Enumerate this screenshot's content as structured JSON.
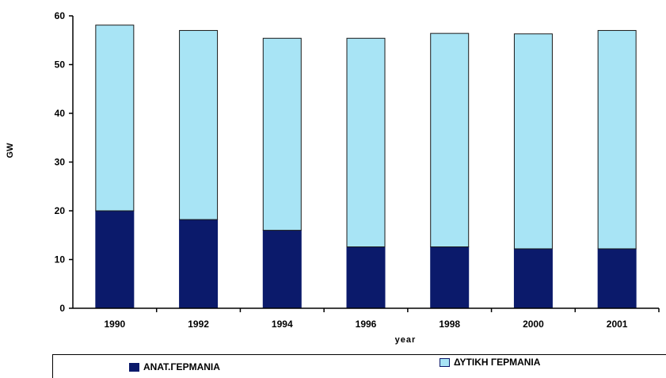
{
  "chart_data": {
    "type": "bar",
    "stacked": true,
    "categories": [
      "1990",
      "1992",
      "1994",
      "1996",
      "1998",
      "2000",
      "2001"
    ],
    "series": [
      {
        "name": "ΑΝΑΤ.ΓΕΡΜΑΝΙΑ",
        "color": "#0b1a6b",
        "values": [
          20.0,
          18.2,
          16.0,
          12.6,
          12.6,
          12.2,
          12.2
        ]
      },
      {
        "name": "ΔΥΤΙΚΗ ΓΕΡΜΑΝΙΑ",
        "color": "#a8e4f5",
        "values": [
          38.1,
          38.8,
          39.4,
          42.8,
          43.8,
          44.1,
          44.8
        ]
      }
    ],
    "xlabel": "year",
    "ylabel": "GW",
    "ylim": [
      0,
      60
    ],
    "yticks": [
      "0",
      "10",
      "20",
      "30",
      "40",
      "50",
      "60"
    ],
    "grid": false,
    "legend_position": "bottom"
  }
}
